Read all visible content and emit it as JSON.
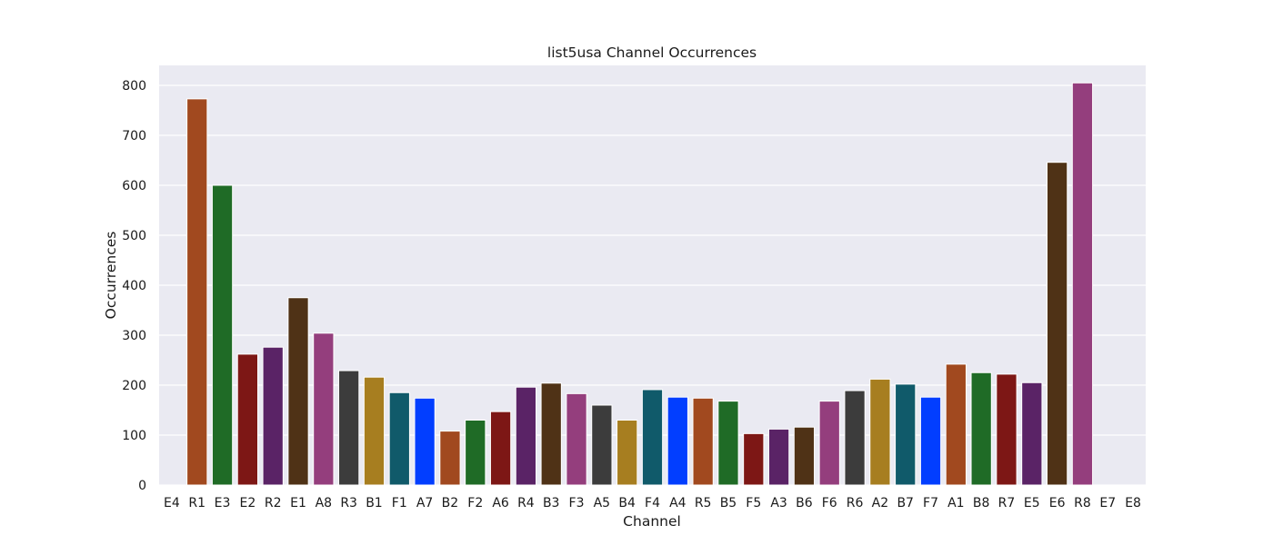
{
  "chart_data": {
    "type": "bar",
    "title": "list5usa Channel Occurrences",
    "xlabel": "Channel",
    "ylabel": "Occurrences",
    "ylim": [
      0,
      840
    ],
    "yticks": [
      0,
      100,
      200,
      300,
      400,
      500,
      600,
      700,
      800
    ],
    "grid": true,
    "legend": "none",
    "background_color": "#eaeaf2",
    "categories": [
      "E4",
      "R1",
      "E3",
      "E2",
      "R2",
      "E1",
      "A8",
      "R3",
      "B1",
      "F1",
      "A7",
      "B2",
      "F2",
      "A6",
      "R4",
      "B3",
      "F3",
      "A5",
      "B4",
      "F4",
      "A4",
      "R5",
      "B5",
      "F5",
      "A3",
      "B6",
      "F6",
      "R6",
      "A2",
      "B7",
      "F7",
      "A1",
      "B8",
      "R7",
      "E5",
      "E6",
      "R8",
      "E7",
      "E8"
    ],
    "values": [
      0,
      773,
      600,
      262,
      276,
      375,
      304,
      229,
      216,
      185,
      174,
      108,
      130,
      147,
      196,
      204,
      183,
      160,
      130,
      191,
      176,
      174,
      168,
      103,
      112,
      116,
      168,
      189,
      212,
      202,
      176,
      242,
      225,
      222,
      205,
      646,
      805,
      0,
      0
    ],
    "palette": [
      "#023eff",
      "#a1491f",
      "#1f6b26",
      "#7d1715",
      "#5a2366",
      "#4f3216",
      "#943e7d",
      "#3c3c3c",
      "#a77e20",
      "#105a6a"
    ]
  }
}
